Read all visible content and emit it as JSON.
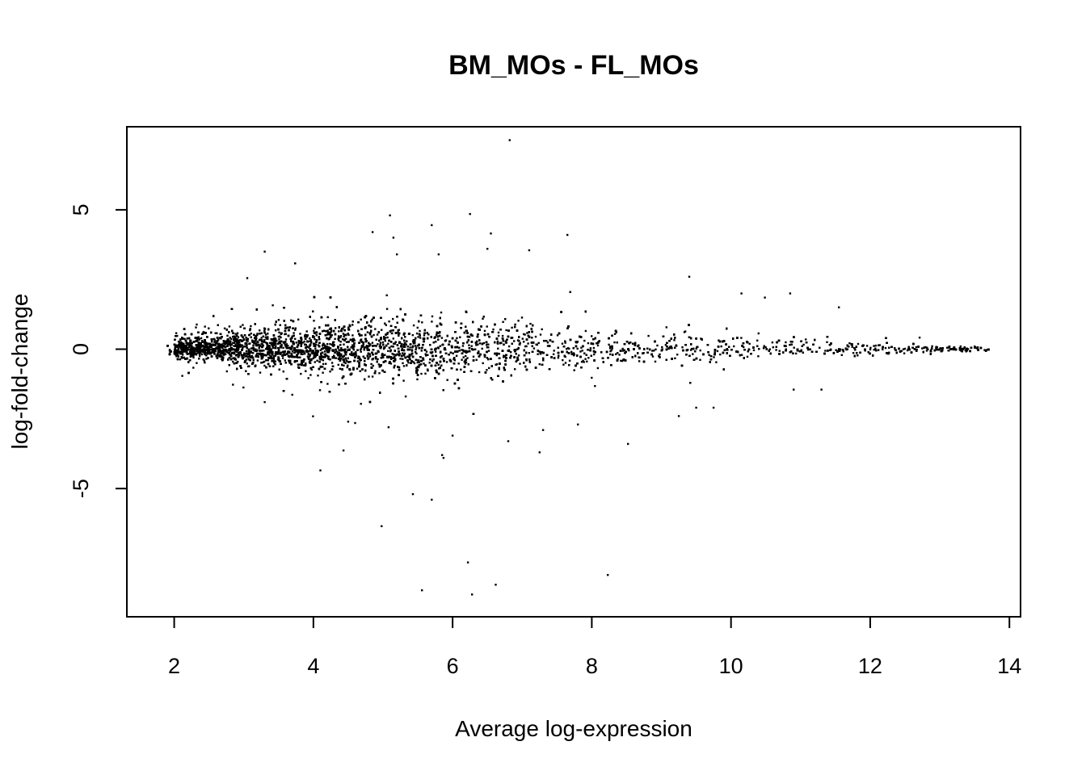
{
  "chart_data": {
    "type": "scatter",
    "title": "BM_MOs - FL_MOs",
    "xlabel": "Average log-expression",
    "ylabel": "log-fold-change",
    "xlim": [
      1.32,
      14.16
    ],
    "ylim": [
      -9.6,
      7.98
    ],
    "xticks": [
      2,
      4,
      6,
      8,
      10,
      12,
      14
    ],
    "yticks": [
      -5,
      0,
      5
    ],
    "grid": false,
    "legend": "none",
    "point_color": "#000000",
    "bulk_envelope": [
      {
        "x": 1.9,
        "spread": 0.45
      },
      {
        "x": 3.0,
        "spread": 0.9
      },
      {
        "x": 4.0,
        "spread": 1.3
      },
      {
        "x": 5.0,
        "spread": 1.45
      },
      {
        "x": 6.0,
        "spread": 1.4
      },
      {
        "x": 7.0,
        "spread": 1.25
      },
      {
        "x": 8.0,
        "spread": 1.05
      },
      {
        "x": 9.0,
        "spread": 0.85
      },
      {
        "x": 10.0,
        "spread": 0.7
      },
      {
        "x": 11.0,
        "spread": 0.5
      },
      {
        "x": 12.0,
        "spread": 0.32
      },
      {
        "x": 13.0,
        "spread": 0.18
      },
      {
        "x": 13.7,
        "spread": 0.1
      }
    ],
    "outliers": [
      {
        "x": 6.82,
        "y": 7.5
      },
      {
        "x": 5.1,
        "y": 4.8
      },
      {
        "x": 6.25,
        "y": 4.85
      },
      {
        "x": 5.7,
        "y": 4.45
      },
      {
        "x": 4.85,
        "y": 4.2
      },
      {
        "x": 6.55,
        "y": 4.15
      },
      {
        "x": 7.65,
        "y": 4.1
      },
      {
        "x": 5.15,
        "y": 4.0
      },
      {
        "x": 3.3,
        "y": 3.5
      },
      {
        "x": 7.1,
        "y": 3.55
      },
      {
        "x": 5.2,
        "y": 3.4
      },
      {
        "x": 5.8,
        "y": 3.4
      },
      {
        "x": 6.5,
        "y": 3.6
      },
      {
        "x": 3.05,
        "y": 2.55
      },
      {
        "x": 9.4,
        "y": 2.6
      },
      {
        "x": 10.15,
        "y": 2.0
      },
      {
        "x": 10.85,
        "y": 2.0
      },
      {
        "x": 11.55,
        "y": 1.5
      },
      {
        "x": 4.1,
        "y": -4.35
      },
      {
        "x": 5.85,
        "y": -3.8
      },
      {
        "x": 5.87,
        "y": -3.9
      },
      {
        "x": 7.25,
        "y": -3.7
      },
      {
        "x": 6.8,
        "y": -3.3
      },
      {
        "x": 8.52,
        "y": -3.4
      },
      {
        "x": 5.43,
        "y": -5.2
      },
      {
        "x": 5.7,
        "y": -5.4
      },
      {
        "x": 4.98,
        "y": -6.35
      },
      {
        "x": 6.22,
        "y": -7.65
      },
      {
        "x": 6.62,
        "y": -8.45
      },
      {
        "x": 8.23,
        "y": -8.1
      },
      {
        "x": 5.56,
        "y": -8.65
      },
      {
        "x": 6.28,
        "y": -8.8
      },
      {
        "x": 5.08,
        "y": -2.8
      },
      {
        "x": 4.5,
        "y": -2.6
      },
      {
        "x": 4.6,
        "y": -2.65
      },
      {
        "x": 9.25,
        "y": -2.4
      },
      {
        "x": 9.5,
        "y": -2.1
      },
      {
        "x": 9.75,
        "y": -2.1
      },
      {
        "x": 10.9,
        "y": -1.45
      },
      {
        "x": 11.3,
        "y": -1.45
      },
      {
        "x": 3.3,
        "y": -1.9
      },
      {
        "x": 6.0,
        "y": -3.1
      },
      {
        "x": 7.3,
        "y": -2.9
      },
      {
        "x": 7.8,
        "y": -2.7
      }
    ]
  }
}
